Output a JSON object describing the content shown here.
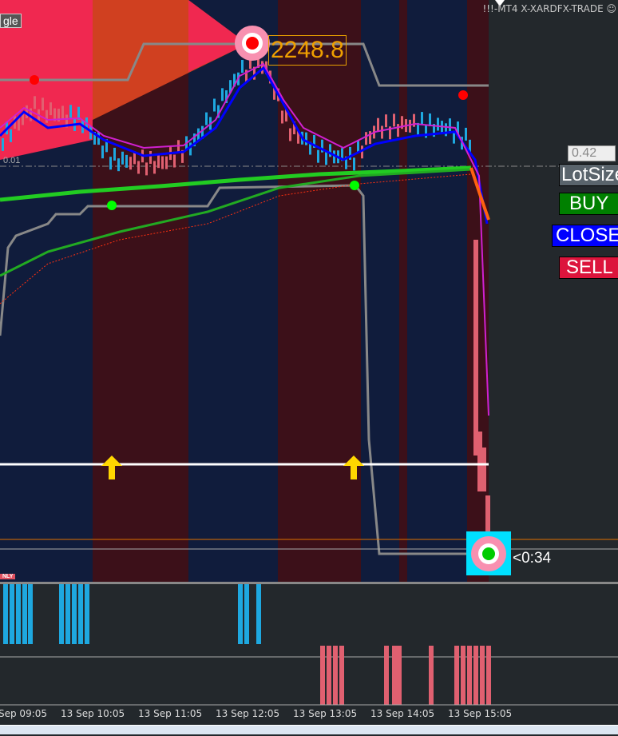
{
  "window": {
    "title": "!!!-MT4 X-XARDFX-TRADE ☺",
    "corner_tag": "gle"
  },
  "chart": {
    "price_label": "2248.8",
    "level_small": "0.01",
    "countdown": "<0:34",
    "only_badge": "NLY",
    "colors": {
      "bull_band": "#101c3c",
      "bear_band": "#3c1019",
      "bull_candle": "#1ea8e0",
      "bear_candle": "#e06070",
      "ma_green": "#22cc22",
      "signal_arrow": "#ffd700"
    }
  },
  "panel": {
    "lot_value": "0.42",
    "lot_label": "LotSize",
    "buy_label": "BUY",
    "close_label": "CLOSE",
    "sell_label": "SELL"
  },
  "time_axis": [
    "Sep 09:05",
    "13 Sep 10:05",
    "13 Sep 11:05",
    "13 Sep 12:05",
    "13 Sep 13:05",
    "13 Sep 14:05",
    "13 Sep 15:05"
  ]
}
